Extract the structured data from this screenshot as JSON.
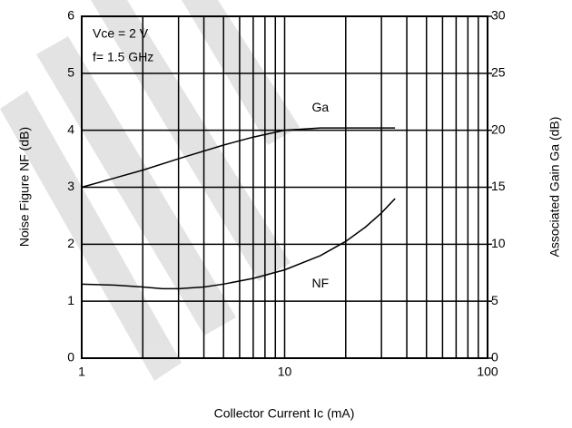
{
  "chart_data": {
    "type": "line",
    "x_label": "Collector Current Ic (mA)",
    "y_label": "Noise Figure NF (dB)",
    "y2_label": "Associated Gain Ga (dB)",
    "annotations": [
      "Vce = 2 V",
      "f= 1.5 GHz"
    ],
    "xlim": [
      1,
      100
    ],
    "xscale": "log",
    "xticks": [
      1,
      10,
      100
    ],
    "xminor_ticks": [
      2,
      3,
      4,
      5,
      6,
      7,
      8,
      9,
      20,
      30,
      40,
      50,
      60,
      70,
      80,
      90
    ],
    "ylim": [
      0,
      6
    ],
    "yticks": [
      0,
      1,
      2,
      3,
      4,
      5,
      6
    ],
    "y2lim": [
      0,
      30
    ],
    "y2ticks": [
      0,
      5,
      10,
      15,
      20,
      25,
      30
    ],
    "grid": true,
    "series": [
      {
        "name": "NF",
        "color": "#000000",
        "x": [
          1,
          1.5,
          2,
          2.5,
          3,
          4,
          5,
          7,
          10,
          15,
          20,
          25,
          30,
          35
        ],
        "values": [
          1.3,
          1.28,
          1.25,
          1.22,
          1.22,
          1.25,
          1.3,
          1.4,
          1.55,
          1.8,
          2.05,
          2.3,
          2.55,
          2.8
        ]
      },
      {
        "name": "Ga",
        "color": "#000000",
        "axis": "y2",
        "x": [
          1,
          2,
          3,
          5,
          7,
          10,
          15,
          20,
          30,
          35
        ],
        "values": [
          15,
          16.5,
          17.5,
          18.7,
          19.4,
          20,
          20.2,
          20.2,
          20.2,
          20.2
        ]
      }
    ]
  }
}
